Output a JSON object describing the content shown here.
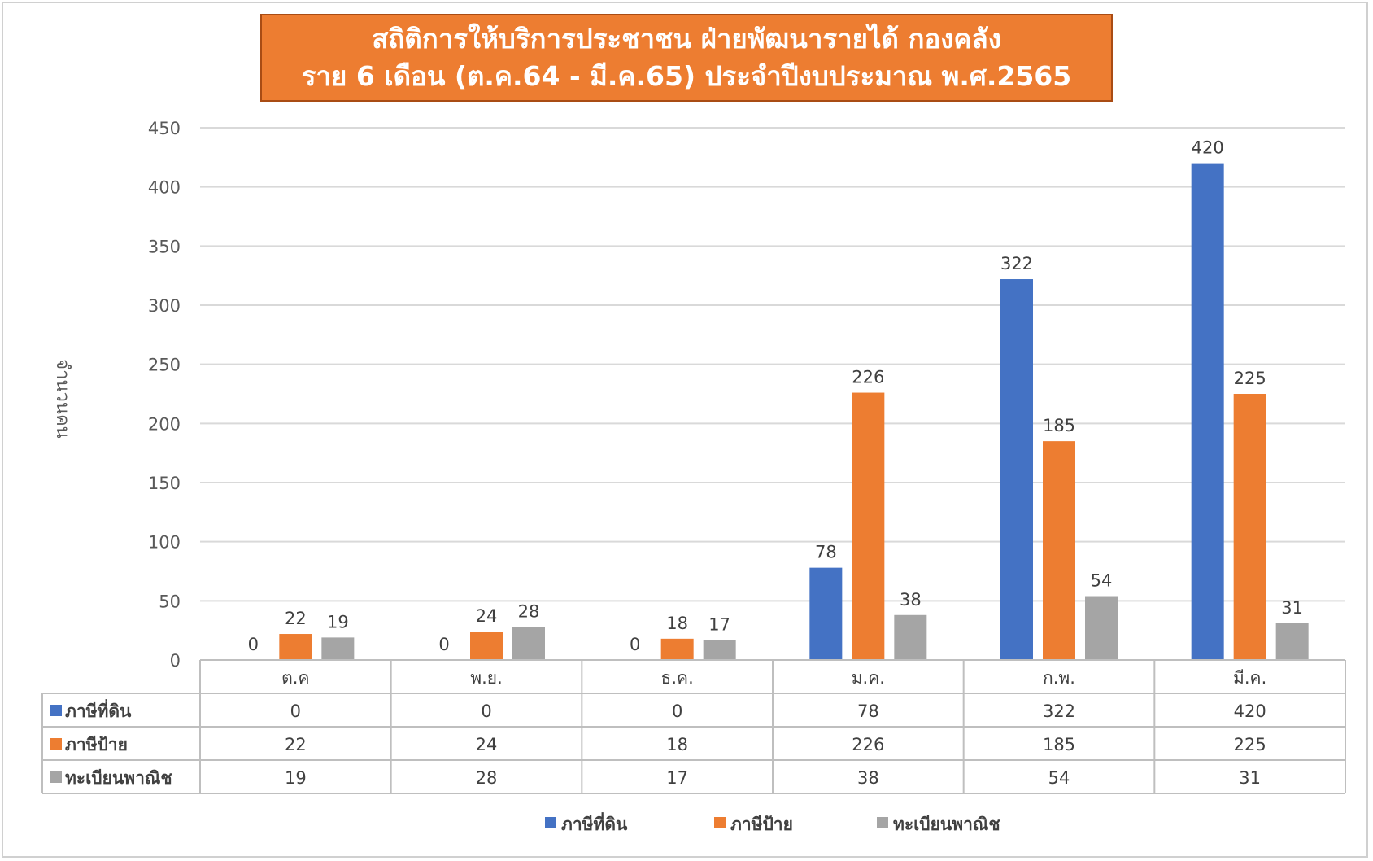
{
  "title": {
    "line1": "สถิติการให้บริการประชาชน  ฝ่ายพัฒนารายได้ กองคลัง",
    "line2": "ราย 6 เดือน (ต.ค.64 - มี.ค.65) ประจำปีงบประมาณ  พ.ศ.2565"
  },
  "colors": {
    "title_bg": "#ed7d31",
    "grid": "#d9d9d9",
    "text": "#404040"
  },
  "chart_data": {
    "type": "bar",
    "title": "สถิติการให้บริการประชาชน  ฝ่ายพัฒนารายได้ กองคลัง ราย 6 เดือน (ต.ค.64 - มี.ค.65) ประจำปีงบประมาณ  พ.ศ.2565",
    "ylabel": "จำนวนคน",
    "xlabel": "",
    "ylim": [
      0,
      450
    ],
    "yticks": [
      0,
      50,
      100,
      150,
      200,
      250,
      300,
      350,
      400,
      450
    ],
    "grid": true,
    "legend": "bottom",
    "data_table": true,
    "categories": [
      "ต.ค",
      "พ.ย.",
      "ธ.ค.",
      "ม.ค.",
      "ก.พ.",
      "มี.ค."
    ],
    "series": [
      {
        "name": "ภาษีที่ดิน",
        "color": "#4472c4",
        "values": [
          0,
          0,
          0,
          78,
          322,
          420
        ]
      },
      {
        "name": "ภาษีป้าย",
        "color": "#ed7d31",
        "values": [
          22,
          24,
          18,
          226,
          185,
          225
        ]
      },
      {
        "name": "ทะเบียนพาณิช",
        "color": "#a5a5a5",
        "values": [
          19,
          28,
          17,
          38,
          54,
          31
        ]
      }
    ]
  }
}
